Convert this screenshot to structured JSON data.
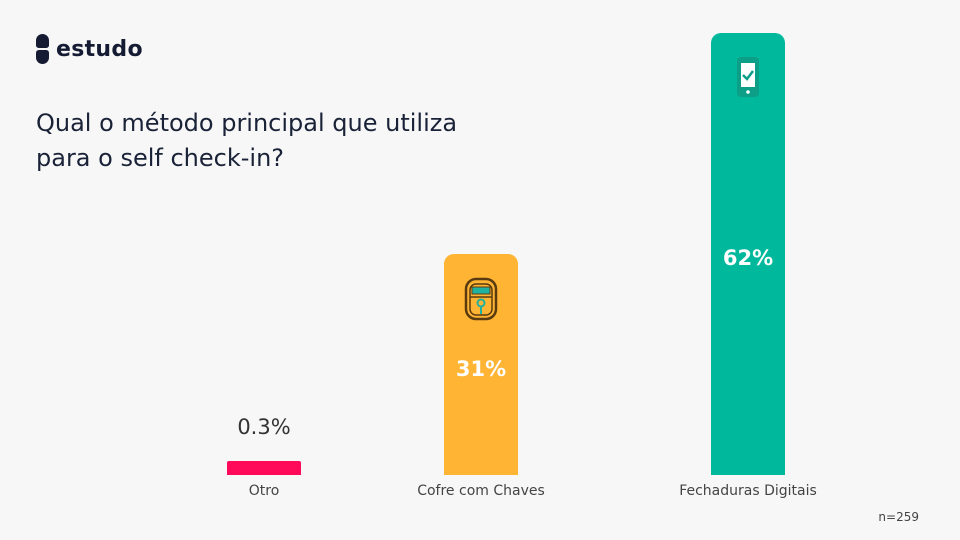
{
  "brand": {
    "name": "estudo"
  },
  "chart_data": {
    "type": "bar",
    "title": "Qual o método principal que utiliza para o self check-in?",
    "categories": [
      "Otro",
      "Cofre com Chaves",
      "Fechaduras Digitais"
    ],
    "values": [
      0.3,
      31,
      62
    ],
    "value_labels": [
      "0.3%",
      "31%",
      "62%"
    ],
    "colors": [
      "#ff0a5a",
      "#ffb433",
      "#00b89c"
    ],
    "icons": [
      null,
      "key-safe-icon",
      "smartphone-check-icon"
    ],
    "ylim": [
      0,
      62
    ],
    "xlabel": "",
    "ylabel": "",
    "grid": false,
    "note": "n=259"
  }
}
